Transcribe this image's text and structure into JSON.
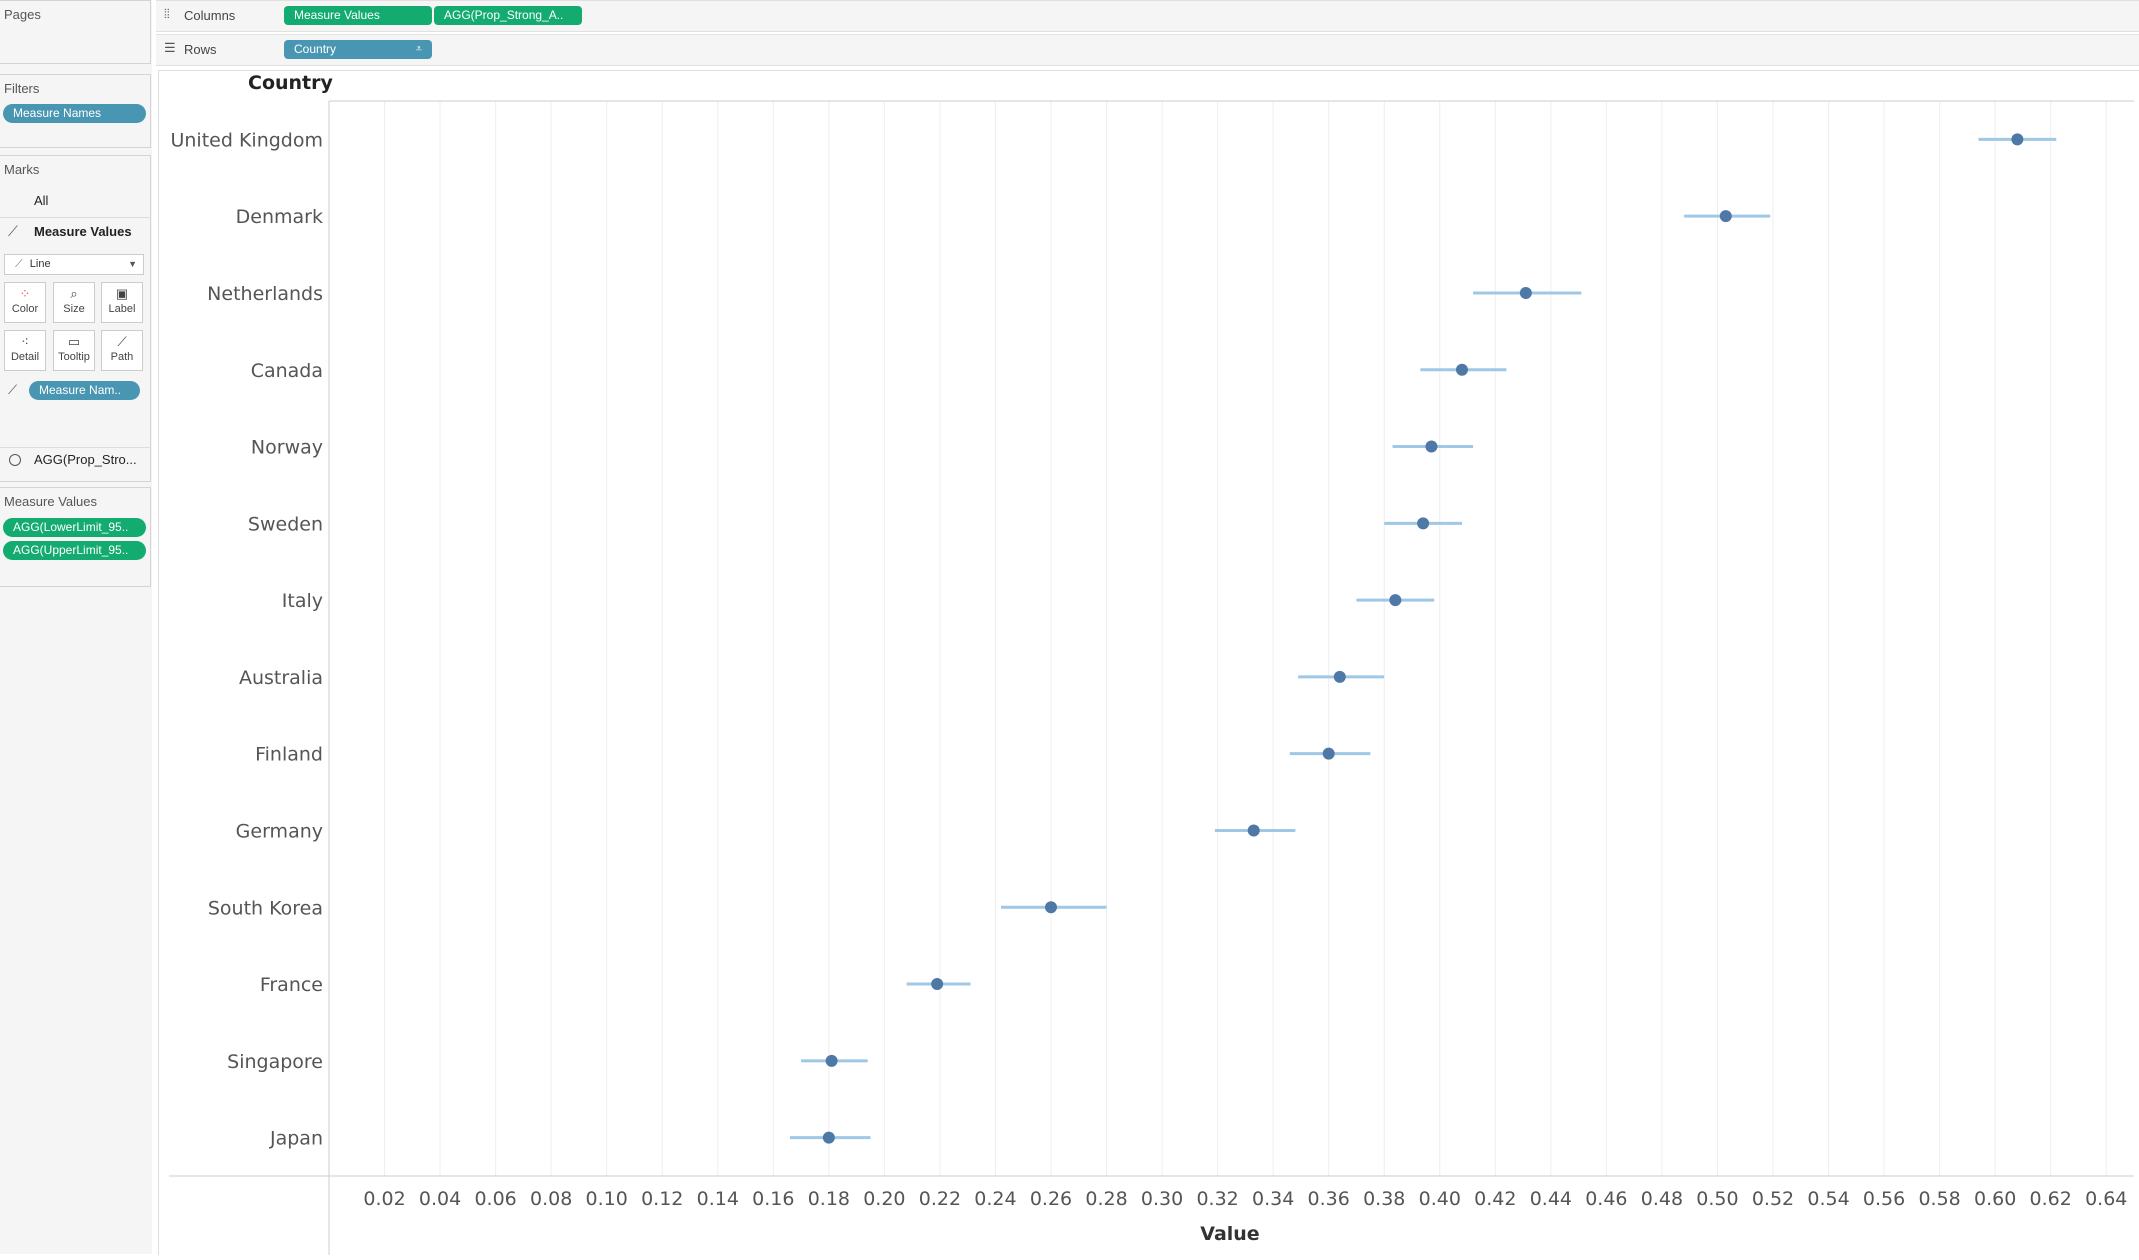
{
  "pages": {
    "title": "Pages"
  },
  "filters": {
    "title": "Filters",
    "pill": "Measure Names"
  },
  "marks": {
    "title": "Marks",
    "all": "All",
    "measure_values": "Measure Values",
    "mark_type": "Line",
    "buttons": [
      "Color",
      "Size",
      "Label",
      "Detail",
      "Tooltip",
      "Path"
    ],
    "path_pill": "Measure Nam..",
    "agg_item": "AGG(Prop_Stro..."
  },
  "measure_values_card": {
    "title": "Measure Values",
    "pills": [
      "AGG(LowerLimit_95..",
      "AGG(UpperLimit_95.."
    ]
  },
  "shelves": {
    "columns_label": "Columns",
    "columns_pills": [
      "Measure Values",
      "AGG(Prop_Strong_A.."
    ],
    "rows_label": "Rows",
    "rows_pill": "Country"
  },
  "colors": {
    "point": "#4e79a7",
    "interval": "#9fc7e6",
    "axis": "#cccccc",
    "grid": "#eeeeee"
  },
  "chart_data": {
    "type": "scatter",
    "row_header": "Country",
    "xlabel": "Value",
    "xlim": [
      0,
      0.65
    ],
    "xticks": [
      0.02,
      0.04,
      0.06,
      0.08,
      0.1,
      0.12,
      0.14,
      0.16,
      0.18,
      0.2,
      0.22,
      0.24,
      0.26,
      0.28,
      0.3,
      0.32,
      0.34,
      0.36,
      0.38,
      0.4,
      0.42,
      0.44,
      0.46,
      0.48,
      0.5,
      0.52,
      0.54,
      0.56,
      0.58,
      0.6,
      0.62,
      0.64
    ],
    "grid": true,
    "categories": [
      "United Kingdom",
      "Denmark",
      "Netherlands",
      "Canada",
      "Norway",
      "Sweden",
      "Italy",
      "Australia",
      "Finland",
      "Germany",
      "South Korea",
      "France",
      "Singapore",
      "Japan"
    ],
    "series": [
      {
        "name": "AGG(Prop_Strong_A..",
        "values": [
          0.608,
          0.503,
          0.431,
          0.408,
          0.397,
          0.394,
          0.384,
          0.364,
          0.36,
          0.333,
          0.26,
          0.219,
          0.181,
          0.18
        ]
      },
      {
        "name": "AGG(LowerLimit_95..",
        "values": [
          0.594,
          0.488,
          0.412,
          0.393,
          0.383,
          0.38,
          0.37,
          0.349,
          0.346,
          0.319,
          0.242,
          0.208,
          0.17,
          0.166
        ]
      },
      {
        "name": "AGG(UpperLimit_95..",
        "values": [
          0.622,
          0.519,
          0.451,
          0.424,
          0.412,
          0.408,
          0.398,
          0.38,
          0.375,
          0.348,
          0.28,
          0.231,
          0.194,
          0.195
        ]
      }
    ]
  }
}
